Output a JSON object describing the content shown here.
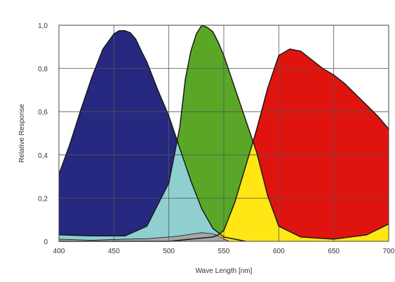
{
  "chart_data": {
    "type": "area",
    "title": "",
    "xlabel": "Wave Length [nm]",
    "ylabel": "Relative Response",
    "xlim": [
      400,
      700
    ],
    "ylim": [
      0,
      1.0
    ],
    "x_ticks": [
      400,
      450,
      500,
      550,
      600,
      650,
      700
    ],
    "x_tick_labels": [
      "400",
      "450",
      "500",
      "550",
      "600",
      "650",
      "700"
    ],
    "y_ticks": [
      0,
      0.2,
      0.4,
      0.6,
      0.8,
      1.0
    ],
    "y_tick_labels": [
      "0",
      "0,2",
      "0,4",
      "0,6",
      "0,8",
      "1,0"
    ],
    "grid": true,
    "legend": "none",
    "colors": {
      "blue": "#27287f",
      "green": "#5aa727",
      "red": "#e0140f",
      "overlap_blue_green": "#8fcfd0",
      "overlap_green_red": "#ffe614",
      "gray": "#a6a6a6",
      "outline": "#1a1a1a",
      "grid": "#555555",
      "frame": "#444444"
    },
    "series": [
      {
        "color": "blue",
        "x": [
          400,
          410,
          420,
          430,
          440,
          450,
          455,
          460,
          465,
          470,
          475,
          480,
          490,
          500,
          510,
          520,
          530,
          540,
          550,
          560,
          570
        ],
        "values": [
          0.31,
          0.45,
          0.61,
          0.76,
          0.89,
          0.96,
          0.975,
          0.975,
          0.965,
          0.935,
          0.88,
          0.83,
          0.7,
          0.58,
          0.43,
          0.28,
          0.15,
          0.06,
          0.02,
          0.01,
          0.0
        ]
      },
      {
        "color": "green",
        "x": [
          400,
          430,
          460,
          480,
          500,
          510,
          515,
          520,
          525,
          530,
          535,
          540,
          545,
          550,
          560,
          570,
          580,
          590,
          600,
          620,
          650,
          680,
          700
        ],
        "values": [
          0.03,
          0.025,
          0.025,
          0.07,
          0.27,
          0.53,
          0.75,
          0.88,
          0.96,
          1.0,
          0.99,
          0.97,
          0.92,
          0.86,
          0.71,
          0.56,
          0.41,
          0.21,
          0.07,
          0.02,
          0.01,
          0.03,
          0.08
        ]
      },
      {
        "color": "red",
        "x": [
          400,
          450,
          500,
          520,
          540,
          545,
          550,
          560,
          570,
          580,
          590,
          600,
          610,
          620,
          630,
          640,
          650,
          660,
          670,
          680,
          690,
          700
        ],
        "values": [
          0.0,
          0.0,
          0.0,
          0.01,
          0.02,
          0.03,
          0.05,
          0.18,
          0.35,
          0.52,
          0.71,
          0.86,
          0.89,
          0.88,
          0.84,
          0.8,
          0.77,
          0.73,
          0.68,
          0.63,
          0.58,
          0.52
        ]
      },
      {
        "color": "gray",
        "x": [
          400,
          430,
          460,
          480,
          500,
          510,
          520,
          530,
          540,
          545,
          550,
          555
        ],
        "values": [
          0.01,
          0.005,
          0.01,
          0.012,
          0.02,
          0.025,
          0.033,
          0.04,
          0.035,
          0.025,
          0.012,
          0.0
        ]
      }
    ]
  }
}
